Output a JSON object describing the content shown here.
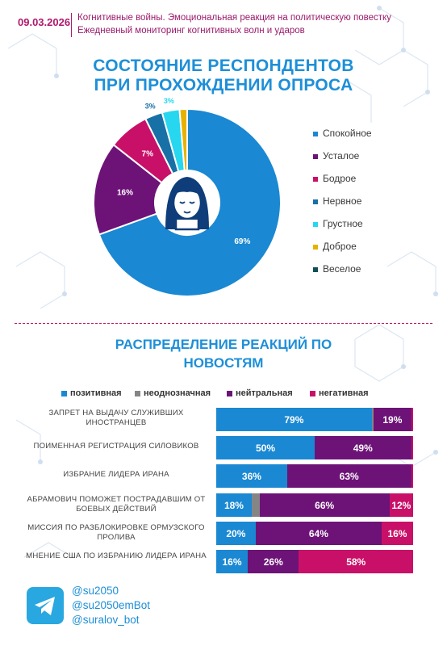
{
  "header": {
    "date": "09.03.2026",
    "line1": "Когнитивные войны. Эмоциональная реакция на политическую повестку",
    "line2": "Ежедневный мониторинг когнитивных волн и ударов"
  },
  "colors": {
    "blue": "#1a88d2",
    "purple": "#6d1377",
    "pink": "#c91068",
    "teal": "#1770a6",
    "cyan": "#27d6ef",
    "yellow": "#e6b200",
    "dark_teal": "#0f4f55",
    "gray": "#858585",
    "accent_blue_title": "#1d8fd8",
    "header_magenta": "#b0196d"
  },
  "chart_data": [
    {
      "type": "pie",
      "variant": "donut",
      "title": "СОСТОЯНИЕ РЕСПОНДЕНТОВ ПРИ ПРОХОЖДЕНИИ ОПРОСА",
      "title_lines": [
        "СОСТОЯНИЕ РЕСПОНДЕНТОВ",
        "ПРИ ПРОХОЖДЕНИИ ОПРОСА"
      ],
      "legend_position": "right",
      "slices": [
        {
          "label": "Спокойное",
          "value": 69,
          "text": "69%",
          "color": "#1a88d2"
        },
        {
          "label": "Усталое",
          "value": 16,
          "text": "16%",
          "color": "#6d1377"
        },
        {
          "label": "Бодрое",
          "value": 7,
          "text": "7%",
          "color": "#c91068"
        },
        {
          "label": "Нервное",
          "value": 3,
          "text": "3%",
          "color": "#1770a6"
        },
        {
          "label": "Грустное",
          "value": 3,
          "text": "3%",
          "color": "#27d6ef"
        },
        {
          "label": "Доброе",
          "value": 1.3,
          "text": "",
          "color": "#e6b200"
        },
        {
          "label": "Веселое",
          "value": 0,
          "text": "",
          "color": "#0f4f55"
        }
      ],
      "center_icon": "calm-face-icon"
    },
    {
      "type": "bar",
      "orientation": "horizontal",
      "stacked": true,
      "normalized": true,
      "title": "РАСПРЕДЕЛЕНИЕ РЕАКЦИЙ ПО НОВОСТЯМ",
      "title_lines": [
        "РАСПРЕДЕЛЕНИЕ РЕАКЦИЙ ПО",
        "НОВОСТЯМ"
      ],
      "legend_position": "top",
      "series": [
        {
          "name": "позитивная",
          "color": "#1a88d2"
        },
        {
          "name": "неоднозначная",
          "color": "#858585"
        },
        {
          "name": "нейтральная",
          "color": "#6d1377"
        },
        {
          "name": "негативная",
          "color": "#c91068"
        }
      ],
      "categories": [
        "Запрет на выдачу служивших иностранцев",
        "Поименная регистрация силовиков",
        "Избрание лидера Ирана",
        "Абрамович поможет пострадавшим от боевых действий",
        "Миссия по разблокировке Ормузского пролива",
        "Мнение США по избранию лидера Ирана"
      ],
      "values": [
        [
          79,
          1,
          19,
          1
        ],
        [
          50,
          0,
          49,
          1
        ],
        [
          36,
          0,
          63,
          1
        ],
        [
          18,
          4,
          66,
          12
        ],
        [
          20,
          0,
          64,
          16
        ],
        [
          16,
          0,
          26,
          58
        ]
      ],
      "value_labels": [
        [
          "79%",
          "",
          "19%",
          ""
        ],
        [
          "50%",
          "",
          "49%",
          ""
        ],
        [
          "36%",
          "",
          "63%",
          ""
        ],
        [
          "18%",
          "",
          "66%",
          "12%"
        ],
        [
          "20%",
          "",
          "64%",
          "16%"
        ],
        [
          "16%",
          "",
          "26%",
          "58%"
        ]
      ]
    }
  ],
  "footer": {
    "icon": "telegram-icon",
    "handles": [
      "@su2050",
      "@su2050emBot",
      "@suralov_bot"
    ]
  }
}
